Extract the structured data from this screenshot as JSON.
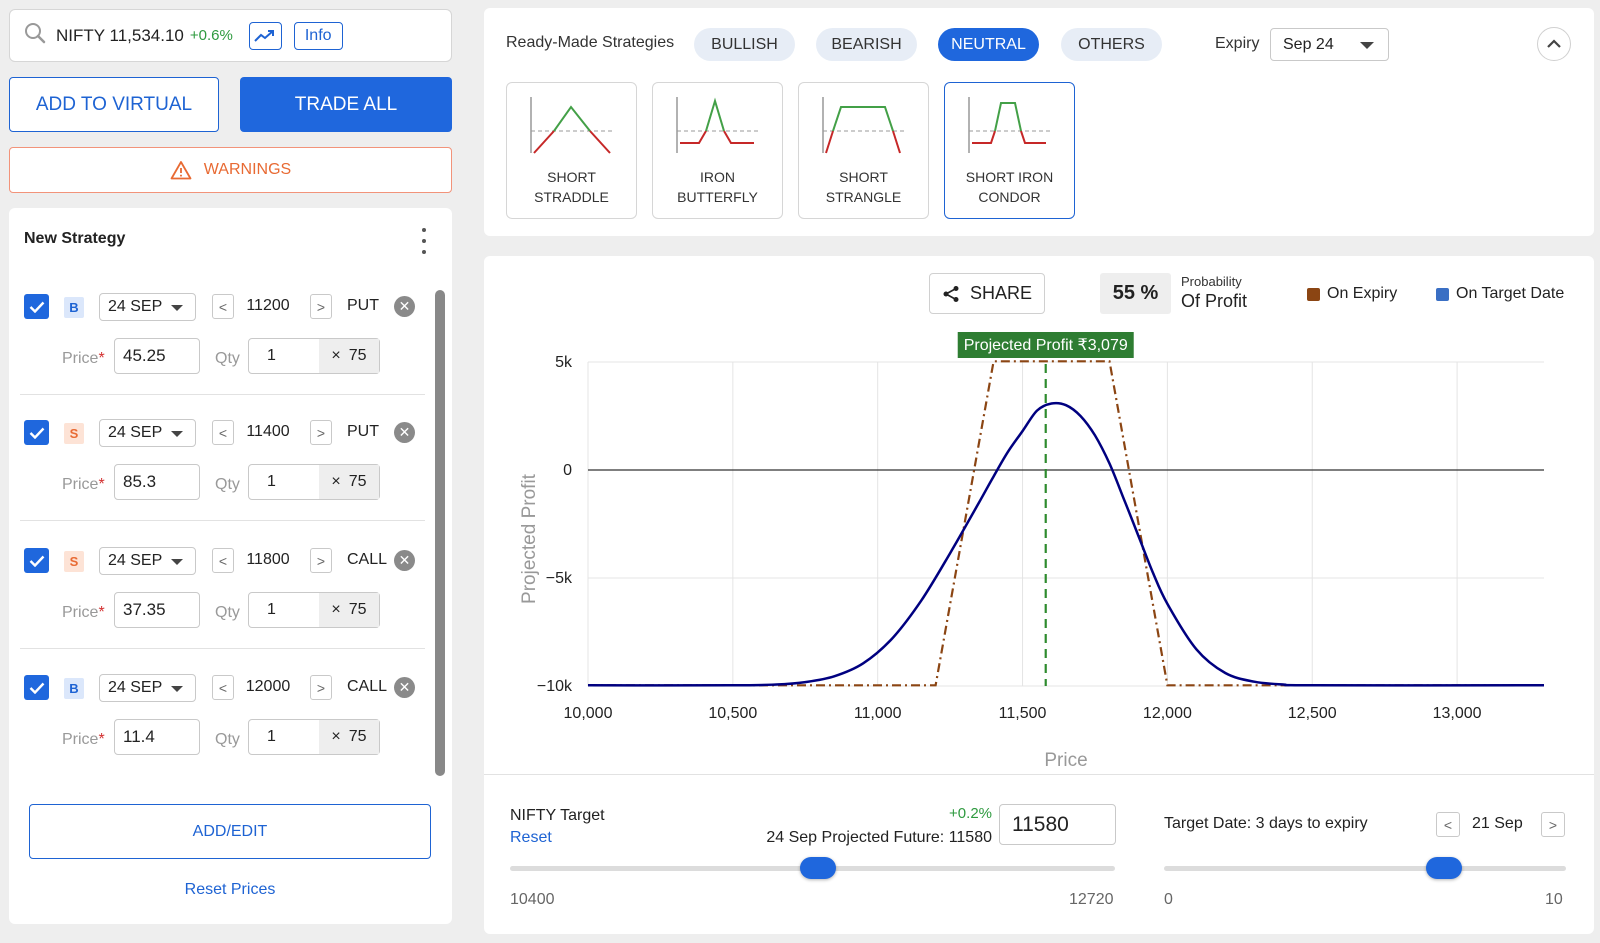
{
  "header": {
    "symbol": "NIFTY 11,534.10",
    "change": "+0.6%",
    "info_label": "Info",
    "icons": [
      "search-icon",
      "trend-chart-icon"
    ]
  },
  "actions": {
    "add_virtual": "ADD TO VIRTUAL",
    "trade_all": "TRADE ALL",
    "warnings": "WARNINGS"
  },
  "strategy": {
    "title": "New Strategy",
    "price_label": "Price",
    "qty_label": "Qty",
    "legs": [
      {
        "side": "B",
        "expiry": "24 SEP",
        "strike": "11200",
        "type": "PUT",
        "price": "45.25",
        "qty": "1",
        "lot": "75",
        "checked": true
      },
      {
        "side": "S",
        "expiry": "24 SEP",
        "strike": "11400",
        "type": "PUT",
        "price": "85.3",
        "qty": "1",
        "lot": "75",
        "checked": true
      },
      {
        "side": "S",
        "expiry": "24 SEP",
        "strike": "11800",
        "type": "CALL",
        "price": "37.35",
        "qty": "1",
        "lot": "75",
        "checked": true
      },
      {
        "side": "B",
        "expiry": "24 SEP",
        "strike": "12000",
        "type": "CALL",
        "price": "11.4",
        "qty": "1",
        "lot": "75",
        "checked": true
      }
    ],
    "add_edit": "ADD/EDIT",
    "reset_prices": "Reset Prices"
  },
  "ready_made": {
    "label": "Ready-Made Strategies",
    "filters": [
      "BULLISH",
      "BEARISH",
      "NEUTRAL",
      "OTHERS"
    ],
    "active_filter": "NEUTRAL",
    "expiry_label": "Expiry",
    "expiry_value": "Sep 24",
    "cards": [
      {
        "line1": "SHORT",
        "line2": "STRADDLE"
      },
      {
        "line1": "IRON",
        "line2": "BUTTERFLY"
      },
      {
        "line1": "SHORT",
        "line2": "STRANGLE"
      },
      {
        "line1": "SHORT IRON",
        "line2": "CONDOR"
      }
    ],
    "active_card": "SHORT IRON CONDOR"
  },
  "chart_panel": {
    "share": "SHARE",
    "pop_value": "55 %",
    "pop_small": "Probability",
    "pop_big": "Of Profit",
    "legend_expiry": "On Expiry",
    "legend_target": "On Target Date",
    "projected_badge": "Projected Profit ₹3,079"
  },
  "chart_data": {
    "type": "line",
    "xlabel": "Price",
    "ylabel": "Projected Profit",
    "xlim": [
      10000,
      13300
    ],
    "ylim": [
      -10000,
      5000
    ],
    "x_ticks": [
      "10,000",
      "10,500",
      "11,000",
      "11,500",
      "12,000",
      "12,500",
      "13,000"
    ],
    "y_ticks": [
      "5k",
      "0",
      "−5k",
      "−10k"
    ],
    "target_price": 11580,
    "colors": {
      "expiry": "#8b4513",
      "target": "#000080",
      "target_line": "#2e8b2e",
      "badge": "#2e7d32"
    },
    "series": [
      {
        "name": "On Expiry",
        "x": [
          10000,
          11200,
          11400,
          11800,
          12000,
          13300
        ],
        "y": [
          -9967,
          -9967,
          5033,
          5033,
          -9967,
          -9967
        ]
      },
      {
        "name": "On Target Date",
        "x": [
          10000,
          10500,
          10650,
          10750,
          10850,
          10950,
          11050,
          11150,
          11250,
          11350,
          11400,
          11450,
          11500,
          11550,
          11600,
          11650,
          11700,
          11750,
          11800,
          11850,
          11900,
          11950,
          12000,
          12100,
          12200,
          12300,
          12400,
          12500,
          13300
        ],
        "y": [
          -9967,
          -9967,
          -9930,
          -9820,
          -9550,
          -8950,
          -7800,
          -6050,
          -3850,
          -1500,
          -300,
          850,
          1800,
          2750,
          3079,
          3000,
          2500,
          1600,
          300,
          -1350,
          -3050,
          -4750,
          -6200,
          -8300,
          -9400,
          -9800,
          -9930,
          -9967,
          -9967
        ]
      }
    ]
  },
  "nifty_target": {
    "label": "NIFTY Target",
    "reset": "Reset",
    "change": "+0.2%",
    "projected": "24 Sep Projected Future: 11580",
    "value": "11580",
    "min": "10400",
    "max": "12720"
  },
  "target_date": {
    "label": "Target Date: 3 days to expiry",
    "date": "21 Sep",
    "min": "0",
    "max": "10"
  }
}
